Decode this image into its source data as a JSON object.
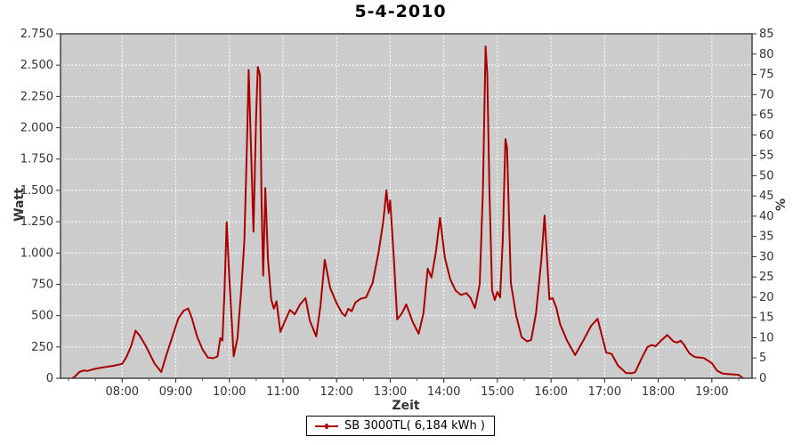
{
  "page": {
    "title": "5-4-2010"
  },
  "legend": {
    "label": "SB 3000TL( 6,184 kWh )"
  },
  "chart_data": {
    "type": "line",
    "title": "5-4-2010",
    "xlabel": "Zeit",
    "ylabel_left": "Watt",
    "ylabel_right": "%",
    "legend_position": "bottom-center",
    "grid": true,
    "plot_bg": "#cccccc",
    "grid_color": "#ffffff",
    "border_color": "#444444",
    "line_color": "#aa0000",
    "xlim": [
      6.85,
      19.75
    ],
    "ylim_left": [
      0,
      2750
    ],
    "ylim_right": [
      0,
      85
    ],
    "x_ticks": [
      {
        "v": 8,
        "label": "08:00"
      },
      {
        "v": 9,
        "label": "09:00"
      },
      {
        "v": 10,
        "label": "10:00"
      },
      {
        "v": 11,
        "label": "11:00"
      },
      {
        "v": 12,
        "label": "12:00"
      },
      {
        "v": 13,
        "label": "13:00"
      },
      {
        "v": 14,
        "label": "14:00"
      },
      {
        "v": 15,
        "label": "15:00"
      },
      {
        "v": 16,
        "label": "16:00"
      },
      {
        "v": 17,
        "label": "17:00"
      },
      {
        "v": 18,
        "label": "18:00"
      },
      {
        "v": 19,
        "label": "19:00"
      }
    ],
    "y_left_ticks": [
      {
        "v": 0,
        "label": "0"
      },
      {
        "v": 250,
        "label": "250"
      },
      {
        "v": 500,
        "label": "500"
      },
      {
        "v": 750,
        "label": "750"
      },
      {
        "v": 1000,
        "label": "1.000"
      },
      {
        "v": 1250,
        "label": "1.250"
      },
      {
        "v": 1500,
        "label": "1.500"
      },
      {
        "v": 1750,
        "label": "1.750"
      },
      {
        "v": 2000,
        "label": "2.000"
      },
      {
        "v": 2250,
        "label": "2.250"
      },
      {
        "v": 2500,
        "label": "2.500"
      },
      {
        "v": 2750,
        "label": "2.750"
      }
    ],
    "y_right_ticks": [
      0,
      5,
      10,
      15,
      20,
      25,
      30,
      35,
      40,
      45,
      50,
      55,
      60,
      65,
      70,
      75,
      80,
      85
    ],
    "series": [
      {
        "name": "SB 3000TL( 6,184 kWh )",
        "color": "#aa0000",
        "x_unit": "decimal_hours",
        "y_unit": "watt",
        "points": [
          [
            7.07,
            0
          ],
          [
            7.12,
            15
          ],
          [
            7.2,
            50
          ],
          [
            7.28,
            62
          ],
          [
            7.35,
            58
          ],
          [
            7.45,
            70
          ],
          [
            7.55,
            80
          ],
          [
            7.7,
            90
          ],
          [
            7.85,
            100
          ],
          [
            8.0,
            115
          ],
          [
            8.08,
            170
          ],
          [
            8.17,
            260
          ],
          [
            8.25,
            380
          ],
          [
            8.33,
            340
          ],
          [
            8.45,
            250
          ],
          [
            8.6,
            120
          ],
          [
            8.73,
            50
          ],
          [
            8.82,
            180
          ],
          [
            8.95,
            350
          ],
          [
            9.05,
            480
          ],
          [
            9.15,
            540
          ],
          [
            9.23,
            557
          ],
          [
            9.3,
            480
          ],
          [
            9.4,
            330
          ],
          [
            9.5,
            230
          ],
          [
            9.6,
            165
          ],
          [
            9.7,
            160
          ],
          [
            9.78,
            175
          ],
          [
            9.83,
            320
          ],
          [
            9.87,
            300
          ],
          [
            9.91,
            700
          ],
          [
            9.95,
            1245
          ],
          [
            10.0,
            800
          ],
          [
            10.08,
            175
          ],
          [
            10.15,
            320
          ],
          [
            10.22,
            700
          ],
          [
            10.28,
            1100
          ],
          [
            10.33,
            1900
          ],
          [
            10.36,
            2460
          ],
          [
            10.4,
            1900
          ],
          [
            10.45,
            1170
          ],
          [
            10.5,
            2100
          ],
          [
            10.53,
            2485
          ],
          [
            10.57,
            2420
          ],
          [
            10.6,
            1400
          ],
          [
            10.63,
            820
          ],
          [
            10.67,
            1520
          ],
          [
            10.72,
            950
          ],
          [
            10.78,
            630
          ],
          [
            10.83,
            555
          ],
          [
            10.88,
            615
          ],
          [
            10.95,
            370
          ],
          [
            11.05,
            470
          ],
          [
            11.13,
            545
          ],
          [
            11.22,
            510
          ],
          [
            11.32,
            590
          ],
          [
            11.42,
            640
          ],
          [
            11.5,
            460
          ],
          [
            11.62,
            334
          ],
          [
            11.7,
            580
          ],
          [
            11.78,
            945
          ],
          [
            11.88,
            720
          ],
          [
            12.0,
            600
          ],
          [
            12.1,
            520
          ],
          [
            12.16,
            497
          ],
          [
            12.22,
            555
          ],
          [
            12.28,
            535
          ],
          [
            12.35,
            605
          ],
          [
            12.45,
            635
          ],
          [
            12.55,
            645
          ],
          [
            12.67,
            760
          ],
          [
            12.78,
            1000
          ],
          [
            12.87,
            1250
          ],
          [
            12.93,
            1500
          ],
          [
            12.97,
            1320
          ],
          [
            13.0,
            1420
          ],
          [
            13.07,
            950
          ],
          [
            13.13,
            470
          ],
          [
            13.22,
            520
          ],
          [
            13.3,
            590
          ],
          [
            13.42,
            450
          ],
          [
            13.53,
            355
          ],
          [
            13.62,
            520
          ],
          [
            13.7,
            875
          ],
          [
            13.77,
            805
          ],
          [
            13.85,
            1000
          ],
          [
            13.93,
            1280
          ],
          [
            14.02,
            960
          ],
          [
            14.12,
            790
          ],
          [
            14.22,
            700
          ],
          [
            14.32,
            665
          ],
          [
            14.42,
            680
          ],
          [
            14.5,
            640
          ],
          [
            14.58,
            560
          ],
          [
            14.67,
            750
          ],
          [
            14.73,
            1500
          ],
          [
            14.78,
            2650
          ],
          [
            14.81,
            2430
          ],
          [
            14.85,
            1500
          ],
          [
            14.9,
            700
          ],
          [
            14.95,
            625
          ],
          [
            15.0,
            690
          ],
          [
            15.05,
            645
          ],
          [
            15.1,
            1100
          ],
          [
            15.15,
            1910
          ],
          [
            15.18,
            1840
          ],
          [
            15.25,
            760
          ],
          [
            15.35,
            500
          ],
          [
            15.45,
            330
          ],
          [
            15.55,
            295
          ],
          [
            15.63,
            305
          ],
          [
            15.72,
            520
          ],
          [
            15.82,
            950
          ],
          [
            15.88,
            1300
          ],
          [
            15.92,
            1000
          ],
          [
            15.97,
            630
          ],
          [
            16.03,
            640
          ],
          [
            16.1,
            560
          ],
          [
            16.17,
            430
          ],
          [
            16.3,
            300
          ],
          [
            16.45,
            185
          ],
          [
            16.6,
            300
          ],
          [
            16.75,
            420
          ],
          [
            16.87,
            475
          ],
          [
            16.95,
            340
          ],
          [
            17.03,
            205
          ],
          [
            17.13,
            195
          ],
          [
            17.25,
            100
          ],
          [
            17.4,
            42
          ],
          [
            17.5,
            40
          ],
          [
            17.57,
            48
          ],
          [
            17.68,
            150
          ],
          [
            17.8,
            250
          ],
          [
            17.88,
            265
          ],
          [
            17.95,
            255
          ],
          [
            18.05,
            300
          ],
          [
            18.17,
            345
          ],
          [
            18.28,
            295
          ],
          [
            18.35,
            285
          ],
          [
            18.42,
            300
          ],
          [
            18.48,
            268
          ],
          [
            18.58,
            200
          ],
          [
            18.68,
            170
          ],
          [
            18.85,
            162
          ],
          [
            19.0,
            120
          ],
          [
            19.1,
            60
          ],
          [
            19.2,
            38
          ],
          [
            19.35,
            32
          ],
          [
            19.5,
            28
          ],
          [
            19.58,
            0
          ]
        ]
      }
    ]
  }
}
